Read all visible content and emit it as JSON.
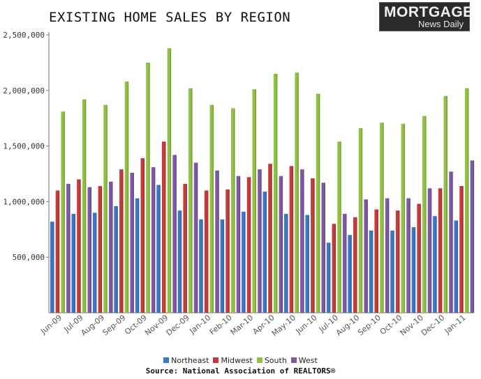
{
  "logo": {
    "line1": "MORTGAGE",
    "line2": "News Daily"
  },
  "source": "Source: National Association of REALTORS®",
  "colors": {
    "Northeast": "#3b78c9",
    "Midwest": "#c73a3a",
    "South": "#93c143",
    "West": "#7e5aa6"
  },
  "chart_data": {
    "type": "bar",
    "title": "EXISTING HOME SALES BY REGION",
    "xlabel": "",
    "ylabel": "",
    "ylim": [
      0,
      2500000
    ],
    "yticks": [
      {
        "value": 500000,
        "label": "500,000"
      },
      {
        "value": 1000000,
        "label": "1,000,000"
      },
      {
        "value": 1500000,
        "label": "1,500,000"
      },
      {
        "value": 2000000,
        "label": "2,000,000"
      },
      {
        "value": 2500000,
        "label": "2,500,000"
      }
    ],
    "grid": false,
    "legend": "bottom",
    "categories": [
      "Jun-09",
      "Jul-09",
      "Aug-09",
      "Sep-09",
      "Oct-09",
      "Nov-09",
      "Dec-09",
      "Jan-10",
      "Feb-10",
      "Mar-10",
      "Apr-10",
      "May-10",
      "Jun-10",
      "Jul-10",
      "Aug-10",
      "Sep-10",
      "Oct-10",
      "Nov-10",
      "Dec-10",
      "Jan-11"
    ],
    "series": [
      {
        "name": "Northeast",
        "values": [
          820000,
          890000,
          900000,
          960000,
          1030000,
          1150000,
          920000,
          840000,
          840000,
          910000,
          1090000,
          890000,
          880000,
          630000,
          700000,
          740000,
          740000,
          770000,
          870000,
          830000
        ]
      },
      {
        "name": "Midwest",
        "values": [
          1100000,
          1200000,
          1140000,
          1290000,
          1390000,
          1540000,
          1160000,
          1100000,
          1110000,
          1220000,
          1340000,
          1320000,
          1210000,
          800000,
          860000,
          930000,
          920000,
          980000,
          1120000,
          1140000
        ]
      },
      {
        "name": "South",
        "values": [
          1810000,
          1920000,
          1870000,
          2080000,
          2250000,
          2380000,
          2020000,
          1870000,
          1840000,
          2010000,
          2150000,
          2160000,
          1970000,
          1540000,
          1660000,
          1710000,
          1700000,
          1770000,
          1950000,
          2020000
        ]
      },
      {
        "name": "West",
        "values": [
          1160000,
          1130000,
          1180000,
          1260000,
          1310000,
          1420000,
          1350000,
          1280000,
          1230000,
          1290000,
          1230000,
          1290000,
          1170000,
          890000,
          1020000,
          1030000,
          1030000,
          1120000,
          1270000,
          1370000
        ]
      }
    ]
  }
}
